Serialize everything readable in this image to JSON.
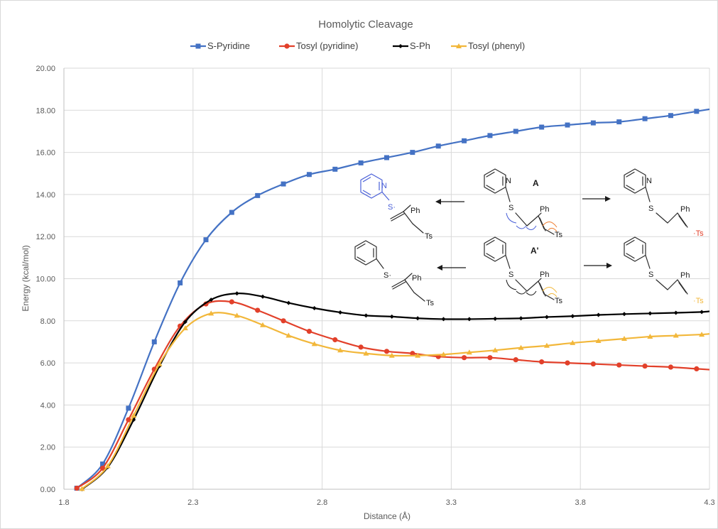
{
  "chart_data": {
    "type": "line",
    "title": "Homolytic Cleavage",
    "xlabel": "Distance (Å)",
    "ylabel": "Energy (kcal/mol)",
    "xlim": [
      1.8,
      4.3
    ],
    "ylim": [
      0,
      20
    ],
    "xticks": [
      "1.8",
      "2.3",
      "2.8",
      "3.3",
      "3.8",
      "4.3"
    ],
    "yticks": [
      "0.00",
      "2.00",
      "4.00",
      "6.00",
      "8.00",
      "10.00",
      "12.00",
      "14.00",
      "16.00",
      "18.00",
      "20.00"
    ],
    "grid": true,
    "legend_position": "top",
    "series": [
      {
        "name": "S-Pyridine",
        "color": "#4472c4",
        "marker": "square",
        "points": [
          [
            1.85,
            0.05
          ],
          [
            1.95,
            1.2
          ],
          [
            2.05,
            3.85
          ],
          [
            2.15,
            7.0
          ],
          [
            2.25,
            9.8
          ],
          [
            2.35,
            11.85
          ],
          [
            2.45,
            13.15
          ],
          [
            2.55,
            13.95
          ],
          [
            2.65,
            14.5
          ],
          [
            2.75,
            14.95
          ],
          [
            2.85,
            15.2
          ],
          [
            2.95,
            15.5
          ],
          [
            3.05,
            15.75
          ],
          [
            3.15,
            16.0
          ],
          [
            3.25,
            16.3
          ],
          [
            3.35,
            16.55
          ],
          [
            3.45,
            16.8
          ],
          [
            3.55,
            17.0
          ],
          [
            3.65,
            17.2
          ],
          [
            3.75,
            17.3
          ],
          [
            3.85,
            17.4
          ],
          [
            3.95,
            17.45
          ],
          [
            4.05,
            17.6
          ],
          [
            4.15,
            17.75
          ],
          [
            4.25,
            17.95
          ],
          [
            4.3,
            18.05
          ]
        ]
      },
      {
        "name": "Tosyl (pyridine)",
        "color": "#e2402a",
        "marker": "circle",
        "points": [
          [
            1.85,
            0.05
          ],
          [
            1.95,
            1.0
          ],
          [
            2.05,
            3.3
          ],
          [
            2.15,
            5.7
          ],
          [
            2.25,
            7.75
          ],
          [
            2.35,
            8.8
          ],
          [
            2.45,
            8.9
          ],
          [
            2.55,
            8.5
          ],
          [
            2.65,
            8.0
          ],
          [
            2.75,
            7.5
          ],
          [
            2.85,
            7.1
          ],
          [
            2.95,
            6.75
          ],
          [
            3.05,
            6.55
          ],
          [
            3.15,
            6.45
          ],
          [
            3.25,
            6.3
          ],
          [
            3.35,
            6.25
          ],
          [
            3.45,
            6.25
          ],
          [
            3.55,
            6.15
          ],
          [
            3.65,
            6.05
          ],
          [
            3.75,
            6.0
          ],
          [
            3.85,
            5.95
          ],
          [
            3.95,
            5.9
          ],
          [
            4.05,
            5.85
          ],
          [
            4.15,
            5.8
          ],
          [
            4.25,
            5.72
          ],
          [
            4.3,
            5.68
          ]
        ]
      },
      {
        "name": "S-Ph",
        "color": "#000000",
        "marker": "diamond",
        "points": [
          [
            1.87,
            0.0
          ],
          [
            1.97,
            1.05
          ],
          [
            2.07,
            3.3
          ],
          [
            2.17,
            5.85
          ],
          [
            2.27,
            7.95
          ],
          [
            2.37,
            9.0
          ],
          [
            2.47,
            9.3
          ],
          [
            2.57,
            9.15
          ],
          [
            2.67,
            8.85
          ],
          [
            2.77,
            8.6
          ],
          [
            2.87,
            8.4
          ],
          [
            2.97,
            8.25
          ],
          [
            3.07,
            8.2
          ],
          [
            3.17,
            8.12
          ],
          [
            3.27,
            8.08
          ],
          [
            3.37,
            8.08
          ],
          [
            3.47,
            8.1
          ],
          [
            3.57,
            8.12
          ],
          [
            3.67,
            8.18
          ],
          [
            3.77,
            8.22
          ],
          [
            3.87,
            8.28
          ],
          [
            3.97,
            8.32
          ],
          [
            4.07,
            8.35
          ],
          [
            4.17,
            8.38
          ],
          [
            4.27,
            8.42
          ],
          [
            4.3,
            8.45
          ]
        ]
      },
      {
        "name": "Tosyl (phenyl)",
        "color": "#f2b73a",
        "marker": "triangle",
        "points": [
          [
            1.87,
            0.02
          ],
          [
            1.97,
            1.1
          ],
          [
            2.07,
            3.5
          ],
          [
            2.17,
            5.95
          ],
          [
            2.27,
            7.65
          ],
          [
            2.37,
            8.35
          ],
          [
            2.47,
            8.25
          ],
          [
            2.57,
            7.8
          ],
          [
            2.67,
            7.3
          ],
          [
            2.77,
            6.9
          ],
          [
            2.87,
            6.6
          ],
          [
            2.97,
            6.45
          ],
          [
            3.07,
            6.35
          ],
          [
            3.17,
            6.35
          ],
          [
            3.27,
            6.4
          ],
          [
            3.37,
            6.5
          ],
          [
            3.47,
            6.6
          ],
          [
            3.57,
            6.72
          ],
          [
            3.67,
            6.82
          ],
          [
            3.77,
            6.95
          ],
          [
            3.87,
            7.05
          ],
          [
            3.97,
            7.15
          ],
          [
            4.07,
            7.25
          ],
          [
            4.17,
            7.3
          ],
          [
            4.27,
            7.35
          ],
          [
            4.3,
            7.38
          ]
        ]
      }
    ],
    "scheme": {
      "label_A": "A",
      "label_A_prime": "A'",
      "atom_N": "N",
      "atom_S": "S",
      "radical_S": "S·",
      "group_Ph": "Ph",
      "group_Ts": "Ts",
      "radical_Ts": "·Ts"
    }
  }
}
